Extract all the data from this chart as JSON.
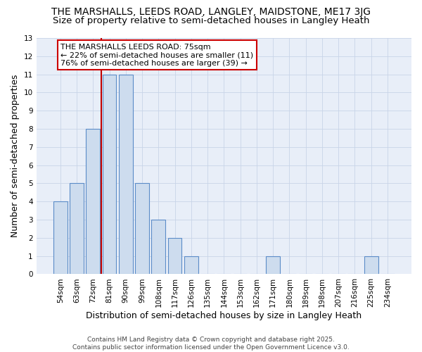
{
  "title": "THE MARSHALLS, LEEDS ROAD, LANGLEY, MAIDSTONE, ME17 3JG",
  "subtitle": "Size of property relative to semi-detached houses in Langley Heath",
  "xlabel": "Distribution of semi-detached houses by size in Langley Heath",
  "ylabel": "Number of semi-detached properties",
  "categories": [
    "54sqm",
    "63sqm",
    "72sqm",
    "81sqm",
    "90sqm",
    "99sqm",
    "108sqm",
    "117sqm",
    "126sqm",
    "135sqm",
    "144sqm",
    "153sqm",
    "162sqm",
    "171sqm",
    "180sqm",
    "189sqm",
    "198sqm",
    "207sqm",
    "216sqm",
    "225sqm",
    "234sqm"
  ],
  "values": [
    4,
    5,
    8,
    11,
    11,
    5,
    3,
    2,
    1,
    0,
    0,
    0,
    0,
    1,
    0,
    0,
    0,
    0,
    0,
    1,
    0
  ],
  "bar_color": "#cddcee",
  "bar_edge_color": "#5b8cc8",
  "vertical_line_x": 2.5,
  "vertical_line_color": "#c00000",
  "ylim": [
    0,
    13
  ],
  "yticks": [
    0,
    1,
    2,
    3,
    4,
    5,
    6,
    7,
    8,
    9,
    10,
    11,
    12,
    13
  ],
  "grid_color": "#c8d4e8",
  "background_color": "#e8eef8",
  "annotation_text": "THE MARSHALLS LEEDS ROAD: 75sqm\n← 22% of semi-detached houses are smaller (11)\n76% of semi-detached houses are larger (39) →",
  "annotation_box_color": "white",
  "annotation_box_edge_color": "#cc0000",
  "footer_text": "Contains HM Land Registry data © Crown copyright and database right 2025.\nContains public sector information licensed under the Open Government Licence v3.0.",
  "title_fontsize": 10,
  "subtitle_fontsize": 9.5,
  "xlabel_fontsize": 9,
  "ylabel_fontsize": 9,
  "tick_fontsize": 7.5,
  "annotation_fontsize": 8,
  "footer_fontsize": 6.5
}
